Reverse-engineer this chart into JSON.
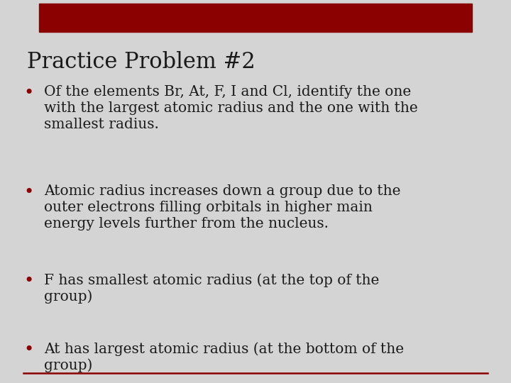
{
  "background_color": "#d4d4d4",
  "header_color": "#8b0000",
  "title": "Practice Problem #2",
  "title_color": "#1a1a1a",
  "title_fontsize": 22,
  "bullet_color": "#8b0000",
  "text_color": "#1a1a1a",
  "bullet_fontsize": 14.5,
  "line_color": "#8b0000",
  "bullets": [
    {
      "lines": [
        "Of the elements Br, At, F, I and Cl, identify the one",
        "with the largest atomic radius and the one with the",
        "smallest radius."
      ]
    },
    {
      "lines": [
        "Atomic radius increases down a group due to the",
        "outer electrons filling orbitals in higher main",
        "energy levels further from the nucleus."
      ]
    },
    {
      "lines": [
        "F has smallest atomic radius (at the top of the",
        "group)"
      ]
    },
    {
      "lines": [
        "At has largest atomic radius (at the bottom of the",
        "group)"
      ]
    }
  ]
}
